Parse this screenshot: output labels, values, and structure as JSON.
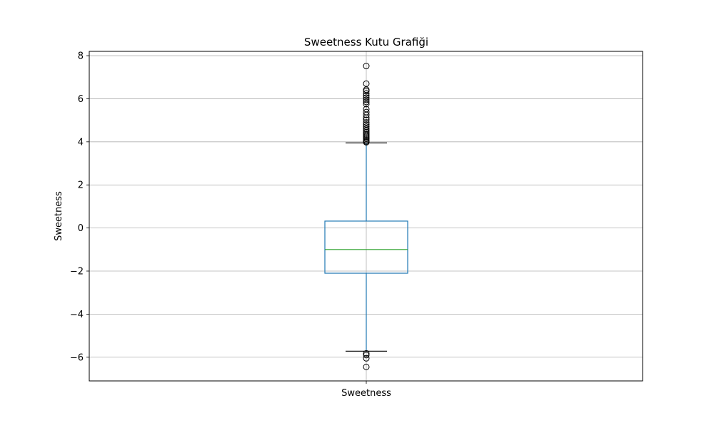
{
  "chart_data": {
    "type": "box",
    "title": "Sweetness Kutu Grafiği",
    "xlabel": "",
    "ylabel": "Sweetness",
    "categories": [
      "Sweetness"
    ],
    "ylim": [
      -7.1,
      8.2
    ],
    "yticks": [
      -6,
      -4,
      -2,
      0,
      2,
      4,
      6,
      8
    ],
    "ytick_labels": [
      "−6",
      "−4",
      "−2",
      "0",
      "2",
      "4",
      "6",
      "8"
    ],
    "grid": true,
    "box": {
      "whisker_low": -5.72,
      "q1": -2.1,
      "median": -1.0,
      "q3": 0.32,
      "whisker_high": 3.95
    },
    "outliers": [
      7.52,
      6.7,
      6.42,
      6.36,
      6.25,
      6.15,
      6.05,
      5.95,
      5.85,
      5.75,
      5.52,
      5.38,
      5.25,
      5.12,
      5.02,
      4.9,
      4.8,
      4.7,
      4.6,
      4.52,
      4.45,
      4.38,
      4.32,
      4.26,
      4.2,
      4.14,
      4.08,
      4.02,
      3.98,
      -5.82,
      -5.9,
      -6.05,
      -6.45
    ],
    "colors": {
      "box": "#1f77b4",
      "median": "#2ca02c",
      "caps": "#000000",
      "grid": "#b0b0b0",
      "axes": "#000000"
    }
  }
}
